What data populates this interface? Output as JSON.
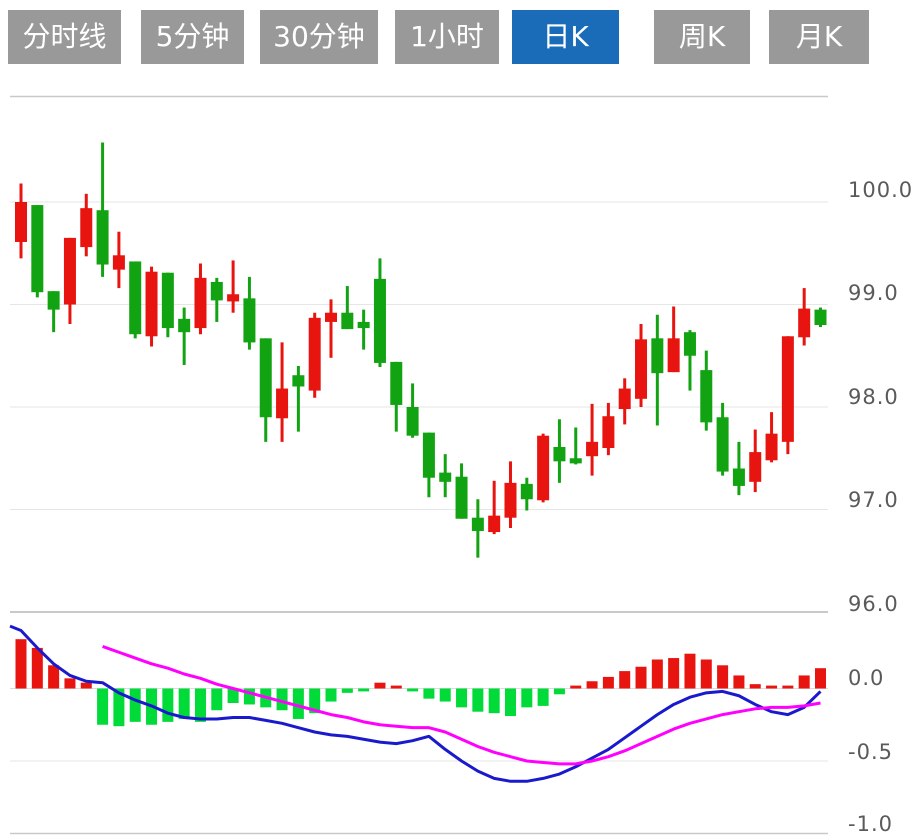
{
  "tabs": [
    {
      "label": "分时线",
      "active": false
    },
    {
      "label": "5分钟",
      "active": false
    },
    {
      "label": "30分钟",
      "active": false
    },
    {
      "label": "1小时",
      "active": false
    },
    {
      "label": "日K",
      "active": true
    },
    {
      "label": "周K",
      "active": false
    },
    {
      "label": "月K",
      "active": false
    }
  ],
  "colors": {
    "up": "#e81410",
    "down": "#12a312",
    "hist_up": "#e81410",
    "hist_down": "#00db3a",
    "dif_line": "#1a1acd",
    "dea_line": "#ff00ff",
    "grid_light": "#e6e6e6",
    "grid_dark": "#c9c9c9",
    "zero_line": "#dcdcdc",
    "axis_text": "#5a5a5a",
    "tab_bg": "#999999",
    "tab_active_bg": "#1b6cb8"
  },
  "chart_data": {
    "type": "candlestick",
    "title": "",
    "grid": true,
    "legend_position": "none",
    "price_axis": {
      "labels": [
        "100.0",
        "99.0",
        "98.0",
        "97.0",
        "96.0"
      ],
      "values": [
        100.0,
        99.0,
        98.0,
        97.0,
        96.0
      ],
      "range": [
        95.9,
        101.05
      ]
    },
    "macd_axis": {
      "labels": [
        "0.0",
        "-0.5",
        "-1.0"
      ],
      "values": [
        0.0,
        -0.5,
        -1.0
      ],
      "range": [
        -1.02,
        0.48
      ]
    },
    "candles_format": [
      "open",
      "high",
      "low",
      "close"
    ],
    "candles": [
      [
        99.61,
        100.18,
        99.45,
        100.0
      ],
      [
        99.97,
        99.97,
        99.07,
        99.12
      ],
      [
        99.13,
        99.13,
        98.73,
        98.95
      ],
      [
        99.0,
        99.65,
        98.81,
        99.65
      ],
      [
        99.56,
        100.08,
        99.47,
        99.94
      ],
      [
        99.92,
        100.58,
        99.27,
        99.39
      ],
      [
        99.34,
        99.71,
        99.16,
        99.48
      ],
      [
        99.42,
        99.42,
        98.67,
        98.71
      ],
      [
        98.69,
        99.37,
        98.59,
        99.32
      ],
      [
        99.31,
        99.31,
        98.68,
        98.77
      ],
      [
        98.86,
        98.97,
        98.41,
        98.73
      ],
      [
        98.77,
        99.4,
        98.71,
        99.26
      ],
      [
        99.22,
        99.26,
        98.83,
        99.04
      ],
      [
        99.03,
        99.43,
        98.92,
        99.1
      ],
      [
        99.06,
        99.27,
        98.56,
        98.63
      ],
      [
        98.67,
        98.67,
        97.66,
        97.9
      ],
      [
        97.89,
        98.63,
        97.66,
        98.18
      ],
      [
        98.31,
        98.4,
        97.76,
        98.2
      ],
      [
        98.16,
        98.92,
        98.09,
        98.87
      ],
      [
        98.83,
        99.05,
        98.48,
        98.92
      ],
      [
        98.92,
        99.18,
        98.76,
        98.76
      ],
      [
        98.83,
        98.95,
        98.56,
        98.77
      ],
      [
        99.25,
        99.45,
        98.39,
        98.43
      ],
      [
        98.44,
        98.44,
        97.76,
        98.02
      ],
      [
        98.0,
        98.23,
        97.7,
        97.72
      ],
      [
        97.75,
        97.75,
        97.12,
        97.31
      ],
      [
        97.36,
        97.54,
        97.12,
        97.27
      ],
      [
        97.32,
        97.45,
        96.91,
        96.91
      ],
      [
        96.92,
        97.1,
        96.53,
        96.79
      ],
      [
        96.78,
        97.28,
        96.76,
        96.94
      ],
      [
        96.92,
        97.47,
        96.82,
        97.26
      ],
      [
        97.25,
        97.31,
        96.99,
        97.1
      ],
      [
        97.09,
        97.74,
        97.07,
        97.72
      ],
      [
        97.61,
        97.88,
        97.26,
        97.47
      ],
      [
        97.5,
        97.8,
        97.44,
        97.45
      ],
      [
        97.52,
        98.03,
        97.33,
        97.66
      ],
      [
        97.6,
        98.04,
        97.53,
        97.91
      ],
      [
        97.98,
        98.28,
        97.83,
        98.18
      ],
      [
        98.08,
        98.81,
        98.0,
        98.66
      ],
      [
        98.67,
        98.9,
        97.82,
        98.33
      ],
      [
        98.34,
        98.98,
        98.34,
        98.67
      ],
      [
        98.73,
        98.75,
        98.16,
        98.5
      ],
      [
        98.36,
        98.55,
        97.77,
        97.85
      ],
      [
        97.9,
        98.04,
        97.33,
        97.37
      ],
      [
        97.4,
        97.66,
        97.14,
        97.23
      ],
      [
        97.27,
        97.78,
        97.17,
        97.56
      ],
      [
        97.48,
        97.95,
        97.46,
        97.74
      ],
      [
        97.66,
        98.69,
        97.54,
        98.69
      ],
      [
        98.68,
        99.16,
        98.6,
        98.96
      ],
      [
        98.95,
        98.97,
        98.78,
        98.8
      ]
    ],
    "macd": {
      "histogram": [
        0.34,
        0.28,
        0.16,
        0.07,
        0.04,
        -0.25,
        -0.26,
        -0.23,
        -0.25,
        -0.23,
        -0.21,
        -0.23,
        -0.15,
        -0.1,
        -0.11,
        -0.13,
        -0.15,
        -0.21,
        -0.17,
        -0.09,
        -0.03,
        -0.02,
        0.04,
        0.02,
        -0.02,
        -0.07,
        -0.09,
        -0.13,
        -0.16,
        -0.17,
        -0.19,
        -0.13,
        -0.12,
        -0.04,
        0.02,
        0.05,
        0.08,
        0.12,
        0.15,
        0.2,
        0.21,
        0.24,
        0.2,
        0.16,
        0.09,
        0.03,
        0.02,
        0.02,
        0.09,
        0.14
      ],
      "dif_left_edge": 0.43,
      "dif": [
        0.4,
        0.28,
        0.17,
        0.09,
        0.05,
        0.04,
        -0.03,
        -0.08,
        -0.12,
        -0.17,
        -0.2,
        -0.21,
        -0.21,
        -0.2,
        -0.2,
        -0.22,
        -0.24,
        -0.27,
        -0.3,
        -0.32,
        -0.33,
        -0.35,
        -0.37,
        -0.38,
        -0.36,
        -0.33,
        -0.42,
        -0.5,
        -0.57,
        -0.62,
        -0.64,
        -0.64,
        -0.62,
        -0.59,
        -0.54,
        -0.48,
        -0.42,
        -0.34,
        -0.26,
        -0.18,
        -0.11,
        -0.06,
        -0.03,
        -0.02,
        -0.05,
        -0.11,
        -0.16,
        -0.18,
        -0.13,
        -0.02
      ],
      "dea_start_index": 5,
      "dea": [
        0.29,
        0.25,
        0.21,
        0.17,
        0.14,
        0.1,
        0.07,
        0.03,
        0.0,
        -0.03,
        -0.06,
        -0.09,
        -0.12,
        -0.15,
        -0.18,
        -0.2,
        -0.23,
        -0.25,
        -0.26,
        -0.27,
        -0.27,
        -0.3,
        -0.35,
        -0.4,
        -0.44,
        -0.47,
        -0.5,
        -0.51,
        -0.52,
        -0.52,
        -0.5,
        -0.47,
        -0.43,
        -0.38,
        -0.33,
        -0.28,
        -0.24,
        -0.21,
        -0.18,
        -0.16,
        -0.14,
        -0.13,
        -0.13,
        -0.12,
        -0.1
      ]
    }
  }
}
